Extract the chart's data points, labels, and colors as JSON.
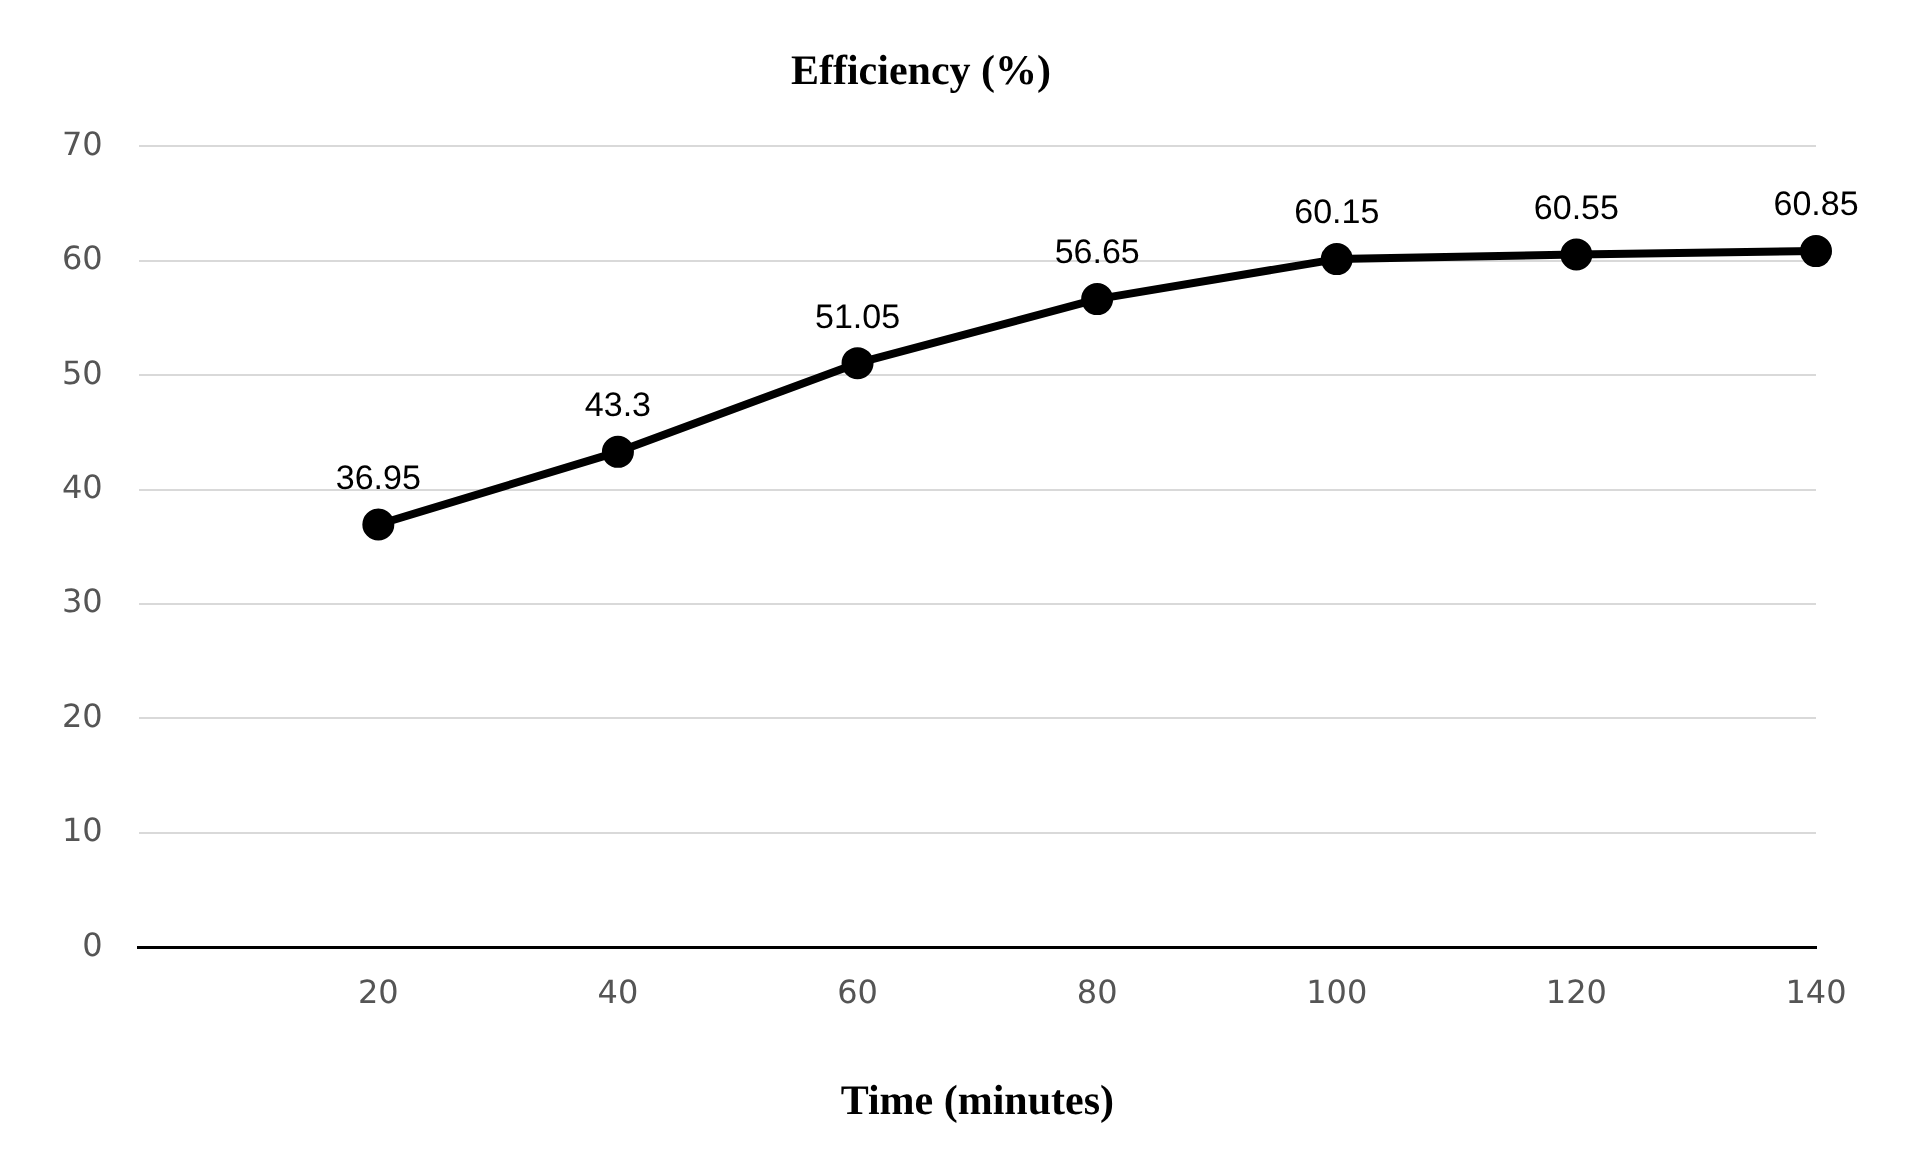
{
  "chart_data": {
    "type": "line",
    "title": "Efficiency (%)",
    "xlabel": "Time (minutes)",
    "categories": [
      null,
      "20",
      "40",
      "60",
      "80",
      "100",
      "120",
      "140"
    ],
    "series": [
      {
        "color": "#000000",
        "values": [
          null,
          36.95,
          43.3,
          51.05,
          56.65,
          60.15,
          60.55,
          60.85
        ]
      }
    ],
    "ylim": [
      0,
      70
    ],
    "yticks": [
      0,
      10,
      20,
      30,
      40,
      50,
      60,
      70
    ],
    "grid": "y",
    "marker": "circle",
    "line_style": "solid",
    "data_labels": true,
    "legend": false
  }
}
